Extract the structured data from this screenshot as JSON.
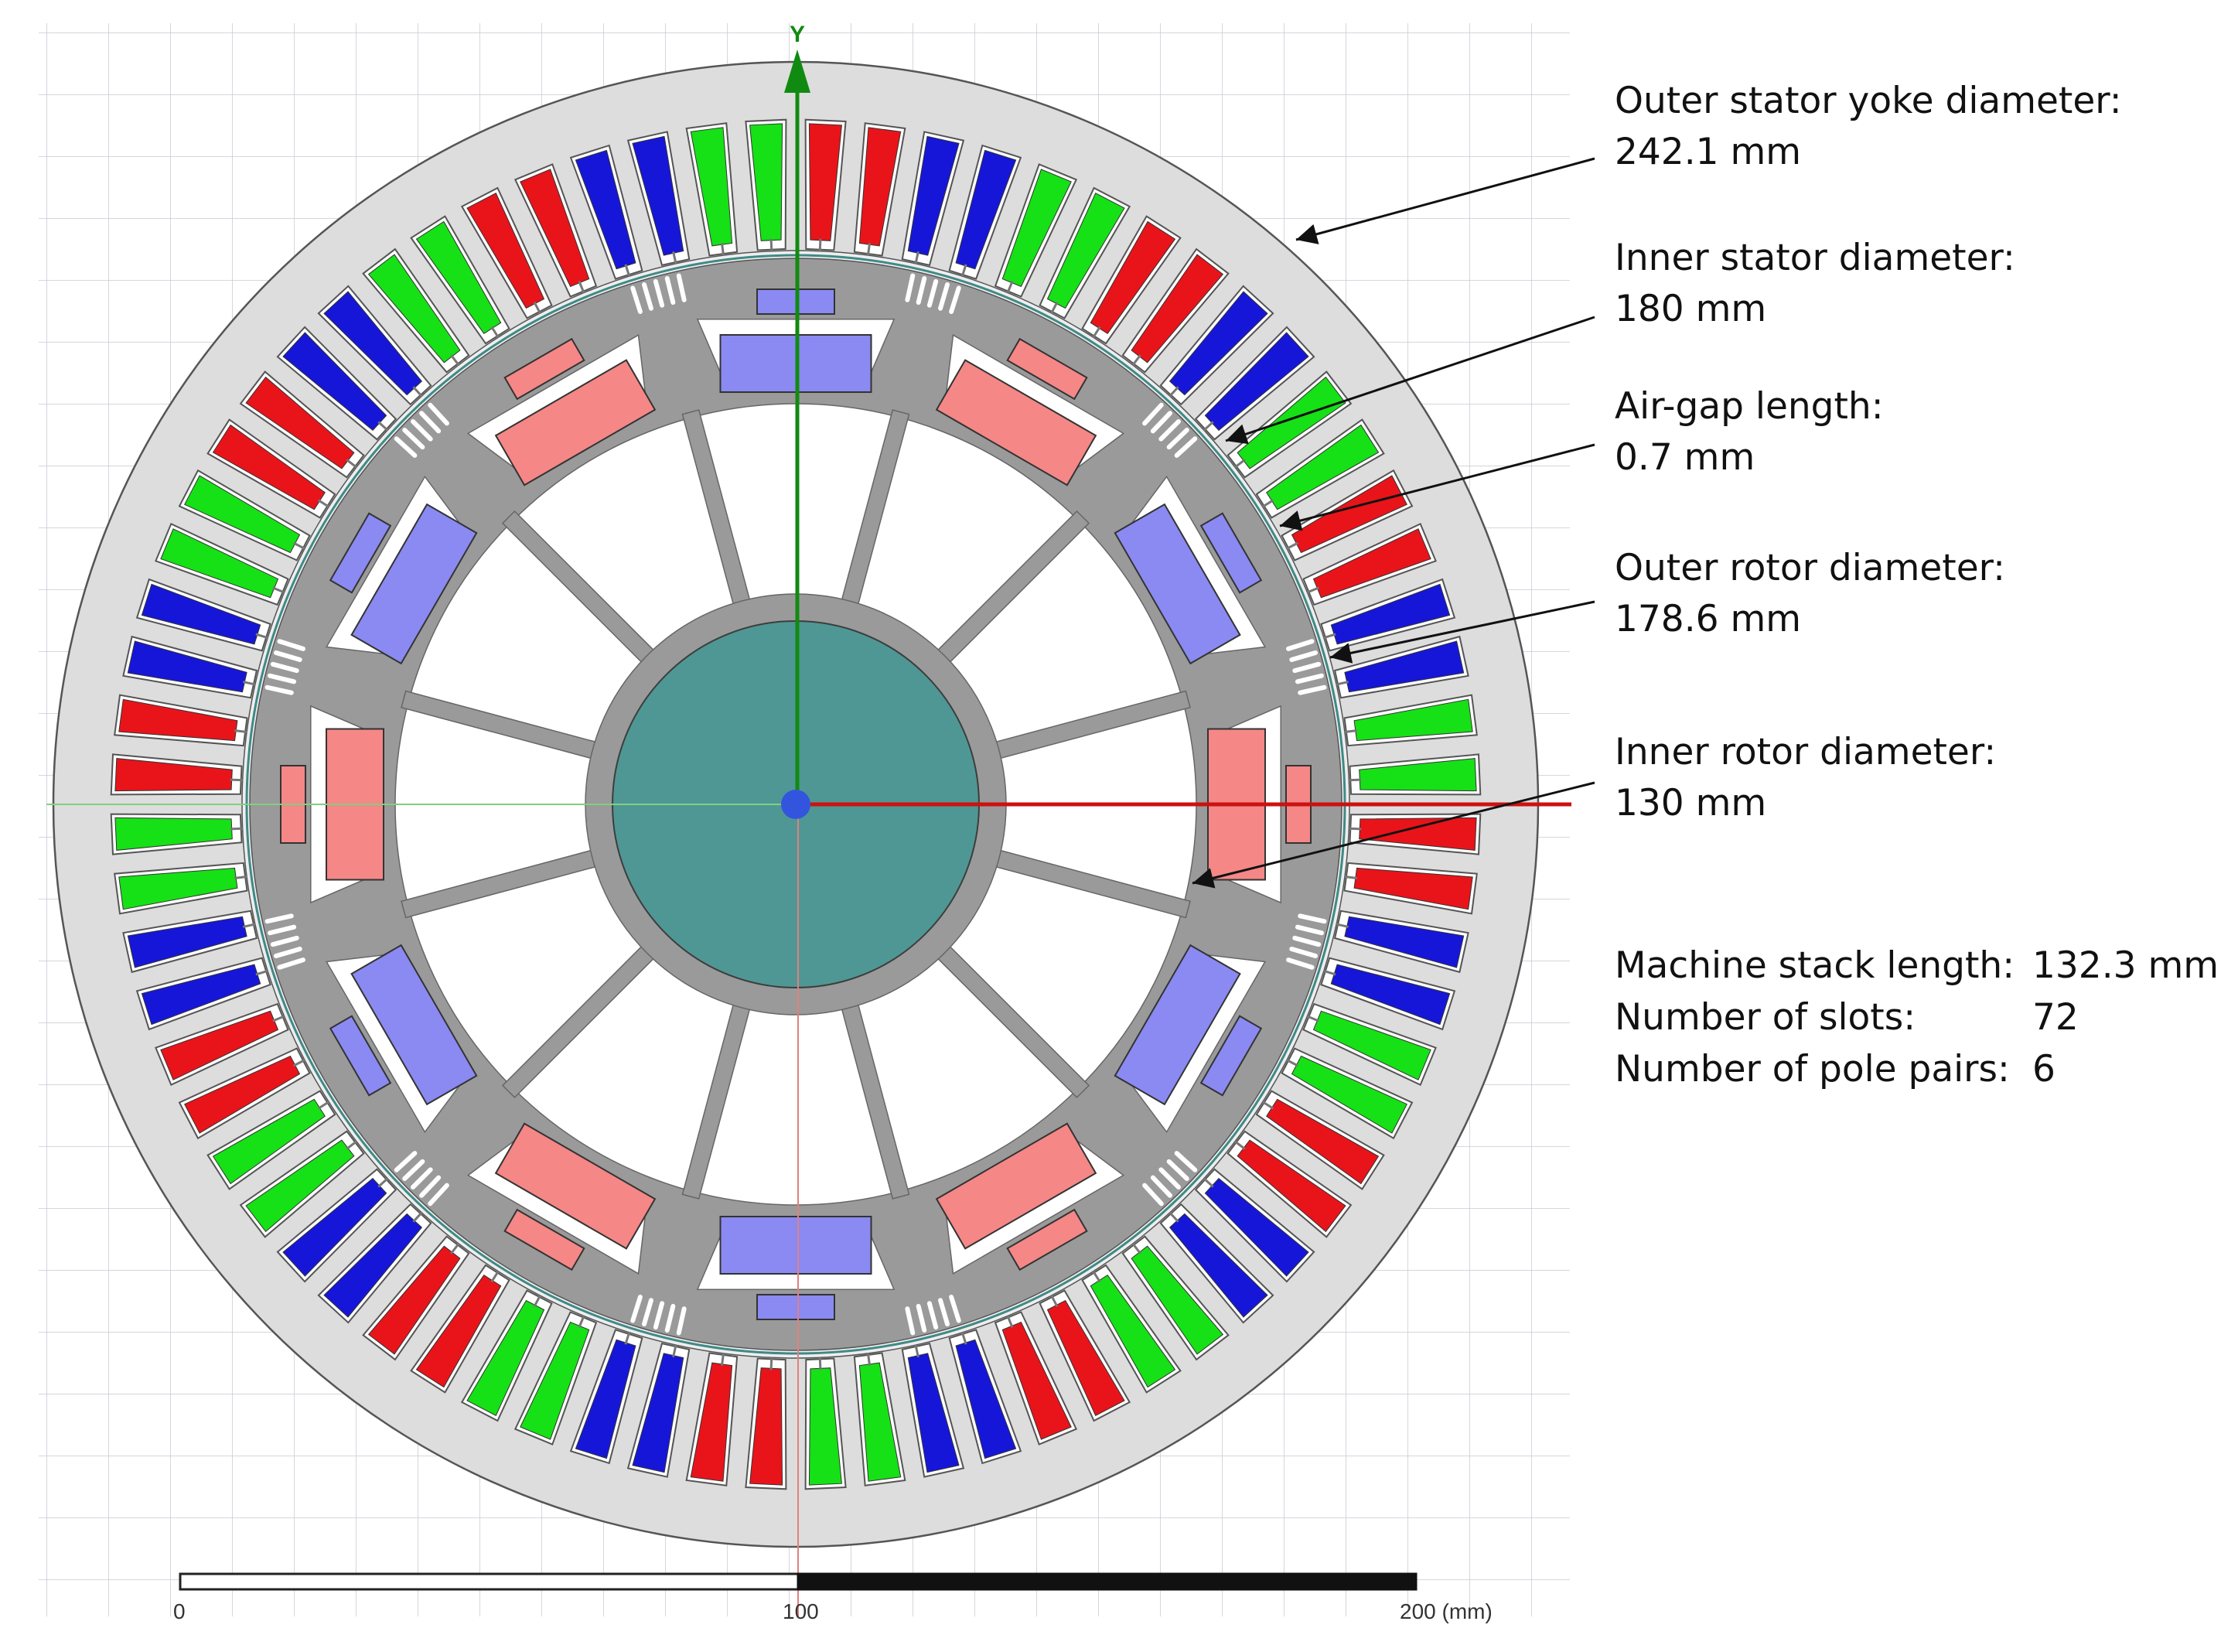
{
  "axes": {
    "y_label": "Y"
  },
  "annotations": [
    {
      "id": "outer-stator-yoke",
      "label": "Outer stator yoke diameter:",
      "value": "242.1 mm"
    },
    {
      "id": "inner-stator",
      "label": "Inner stator diameter:",
      "value": "180 mm"
    },
    {
      "id": "air-gap",
      "label": "Air-gap length:",
      "value": "0.7 mm"
    },
    {
      "id": "outer-rotor",
      "label": "Outer rotor diameter:",
      "value": "178.6 mm"
    },
    {
      "id": "inner-rotor",
      "label": "Inner rotor diameter:",
      "value": "130 mm"
    }
  ],
  "specs": [
    {
      "label": "Machine stack length:",
      "value": "132.3 mm"
    },
    {
      "label": "Number of slots:",
      "value": "72"
    },
    {
      "label": "Number of pole pairs:",
      "value": "6"
    }
  ],
  "scale_bar": {
    "ticks": [
      "0",
      "100",
      "200 (mm)"
    ]
  },
  "machine": {
    "slots": 72,
    "pole_pairs": 6,
    "rotor_spokes": 12,
    "outer_stator_yoke_diameter_mm": 242.1,
    "inner_stator_diameter_mm": 180,
    "outer_rotor_diameter_mm": 178.6,
    "inner_rotor_diameter_mm": 130
  },
  "colors": {
    "phase_a": "#e8141a",
    "phase_b": "#1616d8",
    "phase_c": "#16e016",
    "stator_iron": "#dddddd",
    "rotor_iron": "#999999",
    "magnet_north": "#f58787",
    "magnet_south": "#8a8af2",
    "shaft": "#4f9794",
    "y_axis": "#118a11",
    "x_axis": "#cc1111"
  }
}
